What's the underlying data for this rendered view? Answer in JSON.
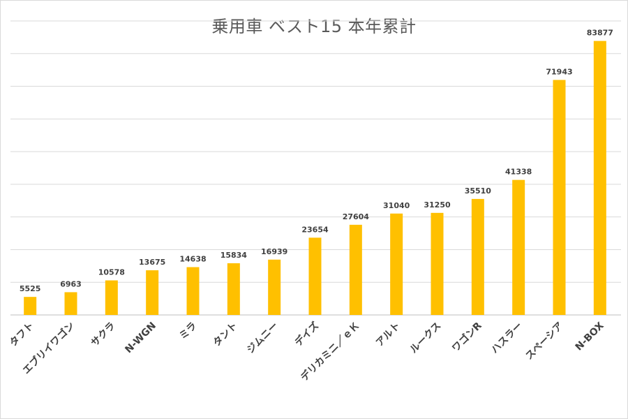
{
  "chart_data": {
    "type": "bar",
    "title": "乗用車 ベスト15 本年累計",
    "xlabel": "",
    "ylabel": "",
    "categories": [
      "タフト",
      "エブリイワゴン",
      "サクラ",
      "N-WGN",
      "ミラ",
      "タント",
      "ジムニー",
      "デイズ",
      "デリカミニ／ｅＫ",
      "アルト",
      "ルークス",
      "ワゴンR",
      "ハスラー",
      "スペーシア",
      "N-BOX"
    ],
    "values": [
      5525,
      6963,
      10578,
      13675,
      14638,
      15834,
      16939,
      23654,
      27604,
      31040,
      31250,
      35510,
      41338,
      71943,
      83877
    ],
    "ylim": [
      0,
      90000
    ],
    "grid": true,
    "legend": "none",
    "bar_color": "#FFC000",
    "grid_color": "#D9D9D9"
  }
}
